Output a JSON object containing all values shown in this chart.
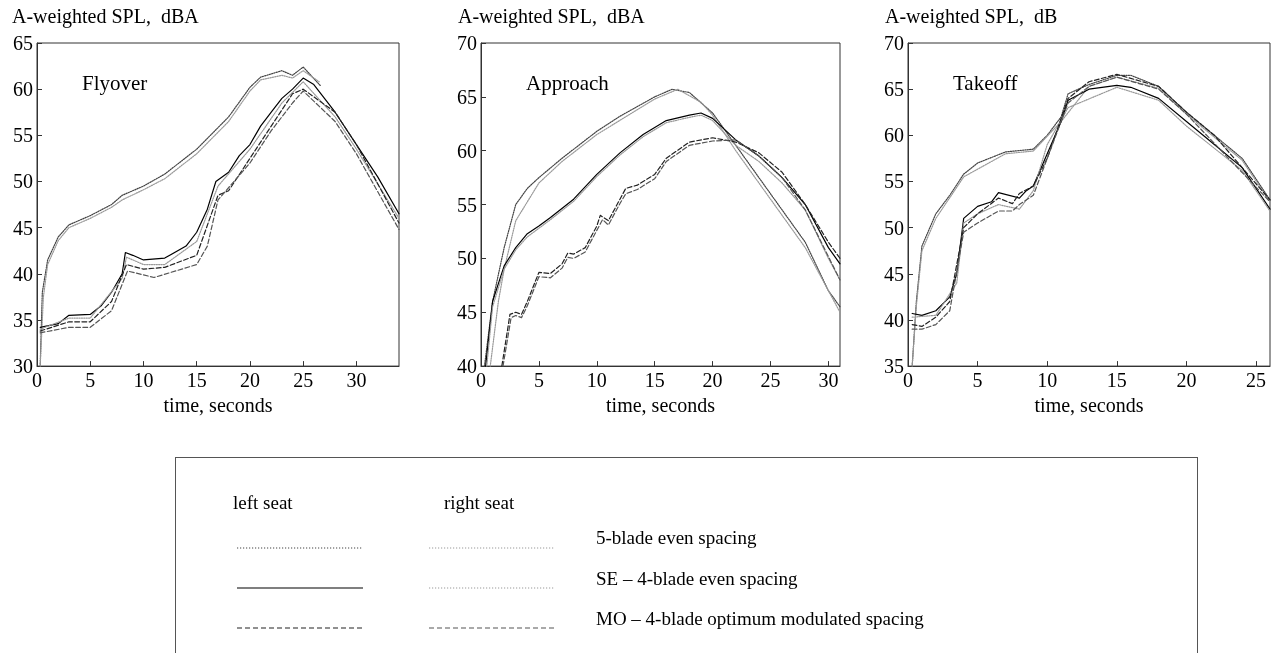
{
  "chart_data": [
    {
      "type": "line",
      "title": "Flyover",
      "ylabel": "A-weighted SPL,  dBA",
      "xlabel": "time, seconds",
      "xlim": [
        0,
        34
      ],
      "xticks": [
        0,
        5,
        10,
        15,
        20,
        25,
        30
      ],
      "ylim": [
        30,
        65
      ],
      "yticks": [
        30,
        35,
        40,
        45,
        50,
        55,
        60,
        65
      ],
      "grid": false,
      "marker": "none",
      "series": [
        {
          "color": "#444444",
          "line_style": "dotted",
          "x": [
            0.3,
            0.5,
            1,
            2,
            3,
            5,
            7,
            8,
            10,
            12,
            15,
            18,
            20,
            21,
            23,
            24,
            25,
            26.6
          ],
          "values": [
            30,
            38,
            41.5,
            44,
            45.3,
            46.3,
            47.5,
            48.5,
            49.5,
            50.8,
            53.5,
            57,
            60.2,
            61.3,
            62,
            61.5,
            62.4,
            60.4
          ]
        },
        {
          "color": "#999999",
          "line_style": "dotted",
          "x": [
            0.3,
            0.6,
            1,
            2,
            3,
            5,
            7,
            8,
            10,
            12,
            15,
            18,
            20,
            21,
            23,
            24,
            25,
            26.5
          ],
          "values": [
            30,
            37.5,
            41,
            43.6,
            45,
            46,
            47.2,
            48,
            49.1,
            50.3,
            53,
            56.5,
            59.8,
            61,
            61.5,
            61.2,
            62,
            60.8
          ]
        },
        {
          "color": "#000000",
          "line_style": "solid",
          "x": [
            0.3,
            2,
            3,
            5,
            6,
            7,
            8,
            8.3,
            9,
            10,
            12,
            14,
            15,
            16,
            16.8,
            18,
            19,
            20,
            21,
            22,
            23,
            24,
            25,
            26,
            28,
            30,
            32,
            34
          ],
          "values": [
            34.2,
            34.6,
            35.5,
            35.6,
            36.5,
            38,
            40,
            42.3,
            42,
            41.5,
            41.7,
            43,
            44.5,
            47,
            50,
            51,
            52.8,
            54,
            56,
            57.5,
            59,
            60,
            61.2,
            60.5,
            57.5,
            54,
            50.5,
            46.5
          ]
        },
        {
          "color": "#999999",
          "line_style": "dotted",
          "x": [
            0.3,
            3,
            5,
            8,
            8.4,
            10,
            12,
            15,
            17,
            20,
            23,
            25,
            28,
            30,
            34
          ],
          "values": [
            34,
            35.2,
            35.2,
            39.5,
            41.8,
            41,
            41,
            43.5,
            49.5,
            53.5,
            58.5,
            60.8,
            57,
            53.5,
            46
          ]
        },
        {
          "color": "#222222",
          "line_style": "dashed",
          "x": [
            0.3,
            3,
            5,
            7,
            8.4,
            10,
            12,
            15,
            17,
            18,
            20,
            22,
            24,
            25,
            28,
            30,
            34
          ],
          "values": [
            33.8,
            34.8,
            34.8,
            37,
            41,
            40.5,
            40.7,
            42,
            48.5,
            49,
            52.5,
            56,
            59.5,
            60,
            57.5,
            54,
            45.5
          ]
        },
        {
          "color": "#555555",
          "line_style": "dashed",
          "x": [
            0.3,
            3,
            5,
            7,
            8.5,
            11,
            15,
            16,
            17,
            20,
            22,
            24,
            25,
            28,
            30,
            34
          ],
          "values": [
            33.6,
            34.2,
            34.2,
            36,
            40.3,
            39.6,
            41,
            43,
            48,
            52,
            55.5,
            58.5,
            59.8,
            56.5,
            53,
            44.8
          ]
        }
      ]
    },
    {
      "type": "line",
      "title": "Approach",
      "ylabel": "A-weighted SPL,  dBA",
      "xlabel": "time, seconds",
      "xlim": [
        0,
        31
      ],
      "xticks": [
        0,
        5,
        10,
        15,
        20,
        25,
        30
      ],
      "ylim": [
        40,
        70
      ],
      "yticks": [
        40,
        45,
        50,
        55,
        60,
        65,
        70
      ],
      "grid": false,
      "marker": "none",
      "series": [
        {
          "color": "#444444",
          "line_style": "dotted",
          "x": [
            0.3,
            1,
            2,
            3,
            4,
            5,
            7,
            10,
            12,
            15,
            16.5,
            18,
            20,
            22,
            25,
            28,
            30,
            31
          ],
          "values": [
            40,
            46,
            51,
            55,
            56.5,
            57.5,
            59.3,
            61.8,
            63.2,
            65,
            65.7,
            65.4,
            63.5,
            60.5,
            56,
            51.5,
            47,
            45.5
          ]
        },
        {
          "color": "#999999",
          "line_style": "dotted",
          "x": [
            0.8,
            1.5,
            2,
            3,
            5,
            7,
            10,
            15,
            17,
            19,
            20,
            22,
            25,
            28,
            31
          ],
          "values": [
            40,
            46,
            49,
            53.5,
            57,
            59,
            61.5,
            64.8,
            65.7,
            64.5,
            63.3,
            60,
            55.5,
            51,
            45
          ]
        },
        {
          "color": "#000000",
          "line_style": "solid",
          "x": [
            0.4,
            1,
            2,
            3,
            4,
            5,
            6,
            8,
            10,
            12,
            14,
            16,
            18,
            19,
            20,
            22,
            24,
            26,
            28,
            30,
            31
          ],
          "values": [
            40,
            46,
            49.3,
            51,
            52.3,
            53,
            53.8,
            55.5,
            57.8,
            59.8,
            61.5,
            62.8,
            63.3,
            63.5,
            63,
            61,
            59.5,
            57.5,
            55,
            51,
            49.5
          ]
        },
        {
          "color": "#999999",
          "line_style": "dotted",
          "x": [
            0.5,
            1,
            2,
            3,
            4,
            5,
            6,
            8,
            10,
            12,
            14,
            16,
            18,
            19,
            20,
            22,
            24,
            26,
            28,
            30,
            31
          ],
          "values": [
            40,
            45.5,
            49,
            50.8,
            52,
            52.8,
            53.6,
            55.3,
            57.6,
            59.6,
            61.3,
            62.6,
            63.1,
            63.3,
            62.8,
            60.5,
            59,
            57,
            54.5,
            50,
            48
          ]
        },
        {
          "color": "#222222",
          "line_style": "dashed",
          "x": [
            1.8,
            2.5,
            3,
            3.5,
            4,
            5,
            6,
            7,
            7.5,
            8,
            9,
            10,
            10.3,
            11,
            12,
            12.5,
            13.5,
            15,
            16,
            18,
            20,
            22,
            24,
            26,
            28,
            30,
            31
          ],
          "values": [
            40,
            44.8,
            45,
            44.8,
            46,
            48.7,
            48.6,
            49.5,
            50.5,
            50.4,
            51,
            53,
            54,
            53.5,
            55.5,
            56.5,
            56.8,
            57.8,
            59.3,
            60.8,
            61.2,
            60.8,
            59.8,
            58,
            55,
            51.5,
            50
          ]
        },
        {
          "color": "#555555",
          "line_style": "dashed",
          "x": [
            1.9,
            2.6,
            3,
            3.5,
            4,
            5,
            6,
            7,
            7.5,
            8,
            9,
            10,
            10.5,
            11,
            12,
            12.5,
            13.5,
            15,
            16,
            18,
            20,
            22,
            24,
            26,
            28,
            31
          ],
          "values": [
            40,
            44.5,
            44.7,
            44.5,
            45.6,
            48.3,
            48.2,
            49.1,
            50.1,
            50,
            50.6,
            52.6,
            53.6,
            53.1,
            55.1,
            56,
            56.4,
            57.4,
            59,
            60.5,
            60.9,
            61,
            59.5,
            57.5,
            54.5,
            48
          ]
        }
      ]
    },
    {
      "type": "line",
      "title": "Takeoff",
      "ylabel": "A-weighted SPL,  dB",
      "xlabel": "time, seconds",
      "xlim": [
        0,
        26
      ],
      "xticks": [
        0,
        5,
        10,
        15,
        20,
        25
      ],
      "ylim": [
        35,
        70
      ],
      "yticks": [
        35,
        40,
        45,
        50,
        55,
        60,
        65,
        70
      ],
      "grid": false,
      "marker": "none",
      "series": [
        {
          "color": "#444444",
          "line_style": "dotted",
          "x": [
            0.3,
            0.6,
            1,
            2,
            3,
            4,
            5,
            7,
            9,
            10,
            11,
            11.5,
            13,
            15,
            16,
            18,
            20,
            22,
            24,
            26
          ],
          "values": [
            35,
            42,
            48,
            51.5,
            53.5,
            55.8,
            57,
            58.2,
            58.5,
            60,
            62,
            64.5,
            65.5,
            66.5,
            66.5,
            65.3,
            62.5,
            60,
            57.5,
            53
          ]
        },
        {
          "color": "#999999",
          "line_style": "dotted",
          "x": [
            0.3,
            0.6,
            1,
            2,
            4,
            7,
            9,
            11,
            13,
            15,
            18,
            20,
            24,
            26
          ],
          "values": [
            35,
            41.5,
            47.5,
            51,
            55.5,
            58,
            58.3,
            61.5,
            65.3,
            66.3,
            65.1,
            62.3,
            57.3,
            52.8
          ]
        },
        {
          "color": "#000000",
          "line_style": "solid",
          "x": [
            0.3,
            1,
            2,
            3,
            3.5,
            4,
            5,
            6,
            6.5,
            8,
            8.5,
            9,
            10,
            11,
            11.5,
            13,
            15,
            16,
            18,
            20,
            22,
            24,
            26
          ],
          "values": [
            40.7,
            40.5,
            41,
            42.5,
            45,
            51,
            52.3,
            52.8,
            53.8,
            53.2,
            54,
            54.5,
            58,
            61.5,
            63.8,
            65,
            65.4,
            65.2,
            64,
            61.5,
            59,
            56.5,
            52
          ]
        },
        {
          "color": "#999999",
          "line_style": "dotted",
          "x": [
            0.3,
            2,
            3.5,
            4,
            5,
            6.5,
            8,
            9,
            10,
            11.5,
            15,
            18,
            20,
            24,
            26
          ],
          "values": [
            40.3,
            40.5,
            44,
            50.5,
            51.5,
            52.5,
            52,
            54,
            59,
            63,
            65.2,
            63.8,
            61,
            56.2,
            51.8
          ]
        },
        {
          "color": "#222222",
          "line_style": "dashed",
          "x": [
            0.3,
            1,
            2,
            3,
            4,
            5,
            6.5,
            7.5,
            8,
            9,
            10,
            11.5,
            13,
            15,
            18,
            20,
            22,
            26
          ],
          "values": [
            39.5,
            39.3,
            40.3,
            42,
            50,
            51.5,
            53.2,
            52.6,
            53.7,
            54.5,
            57.5,
            64,
            65.8,
            66.6,
            65.3,
            62.5,
            60,
            53
          ]
        },
        {
          "color": "#555555",
          "line_style": "dashed",
          "x": [
            0.3,
            1,
            2,
            3,
            4,
            5,
            6.5,
            7.5,
            8,
            9,
            10,
            11.5,
            13,
            15,
            18,
            20,
            26
          ],
          "values": [
            39,
            39,
            39.5,
            41,
            49.5,
            50.5,
            51.8,
            51.8,
            52.5,
            53.5,
            57.5,
            63.5,
            65.3,
            66.3,
            65,
            62.3,
            52.8
          ]
        }
      ]
    },
    {
      "type": "other",
      "annotations": [
        "left seat",
        "right seat",
        "5-blade even spacing",
        "SE – 4-blade even spacing",
        "MO – 4-blade optimum modulated spacing"
      ]
    }
  ]
}
